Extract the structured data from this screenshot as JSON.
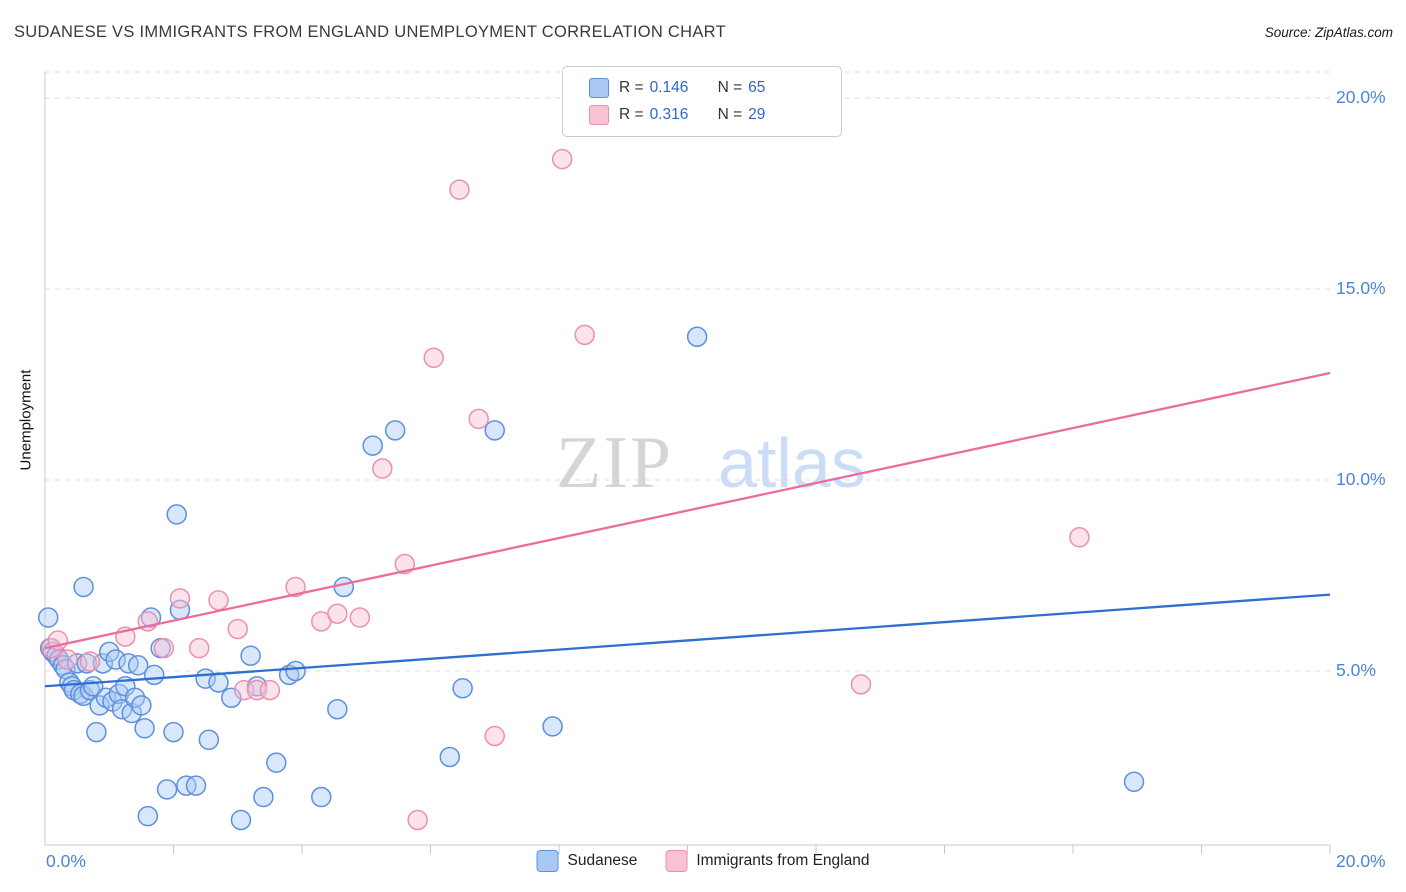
{
  "header": {
    "title": "SUDANESE VS IMMIGRANTS FROM ENGLAND UNEMPLOYMENT CORRELATION CHART",
    "source": "Source: ZipAtlas.com"
  },
  "watermark": {
    "part1": "ZIP",
    "part2": "atlas"
  },
  "legend_box": {
    "rows": [
      {
        "r_label": "R =",
        "r_value": "0.146",
        "n_label": "N =",
        "n_value": "65"
      },
      {
        "r_label": "R =",
        "r_value": "0.316",
        "n_label": "N =",
        "n_value": "29"
      }
    ]
  },
  "axis": {
    "y_ticks": [
      "5.0%",
      "10.0%",
      "15.0%",
      "20.0%"
    ],
    "x_min_label": "0.0%",
    "x_max_label": "20.0%"
  },
  "colors": {
    "axis_label_blue": "#4a86d8",
    "legend_value_blue": "#3066c8",
    "gridline": "#dcdcdc",
    "watermark_gray": "#d5d5d5",
    "watermark_blue": "#cadcf6"
  },
  "chart_data": {
    "type": "scatter",
    "title": "SUDANESE VS IMMIGRANTS FROM ENGLAND UNEMPLOYMENT CORRELATION CHART",
    "xlabel": "",
    "ylabel": "Unemployment",
    "xlim": [
      0,
      20
    ],
    "ylim": [
      0,
      20.7
    ],
    "x_unit": "%",
    "y_unit": "%",
    "grid": "horizontal-dashed",
    "y_gridlines": [
      5,
      10,
      15,
      20
    ],
    "x_ticks": [
      2,
      4,
      6,
      8,
      10,
      12,
      14,
      16,
      18,
      20
    ],
    "legend_position": "bottom-center",
    "series": [
      {
        "name": "Sudanese",
        "R": 0.146,
        "N": 65,
        "fill": "#a9c9f4",
        "edge": "#5e90dd",
        "line": "#2e6fd2",
        "trend": {
          "x": [
            0,
            20
          ],
          "y": [
            4.6,
            7.0
          ]
        },
        "points": [
          [
            0.05,
            6.4
          ],
          [
            0.08,
            5.6
          ],
          [
            0.12,
            5.5
          ],
          [
            0.18,
            5.4
          ],
          [
            0.22,
            5.3
          ],
          [
            0.28,
            5.15
          ],
          [
            0.32,
            5.05
          ],
          [
            0.38,
            4.7
          ],
          [
            0.42,
            4.6
          ],
          [
            0.45,
            4.5
          ],
          [
            0.5,
            5.2
          ],
          [
            0.55,
            4.4
          ],
          [
            0.6,
            7.2
          ],
          [
            0.6,
            4.35
          ],
          [
            0.65,
            5.2
          ],
          [
            0.7,
            4.5
          ],
          [
            0.75,
            4.6
          ],
          [
            0.8,
            3.4
          ],
          [
            0.85,
            4.1
          ],
          [
            0.9,
            5.2
          ],
          [
            0.95,
            4.3
          ],
          [
            1.0,
            5.5
          ],
          [
            1.05,
            4.2
          ],
          [
            1.1,
            5.3
          ],
          [
            1.15,
            4.4
          ],
          [
            1.2,
            4.0
          ],
          [
            1.25,
            4.6
          ],
          [
            1.3,
            5.2
          ],
          [
            1.35,
            3.9
          ],
          [
            1.4,
            4.3
          ],
          [
            1.45,
            5.15
          ],
          [
            1.5,
            4.1
          ],
          [
            1.55,
            3.5
          ],
          [
            1.6,
            1.2
          ],
          [
            1.65,
            6.4
          ],
          [
            1.7,
            4.9
          ],
          [
            1.8,
            5.6
          ],
          [
            1.9,
            1.9
          ],
          [
            2.0,
            3.4
          ],
          [
            2.05,
            9.1
          ],
          [
            2.1,
            6.6
          ],
          [
            2.2,
            2.0
          ],
          [
            2.35,
            2.0
          ],
          [
            2.5,
            4.8
          ],
          [
            2.55,
            3.2
          ],
          [
            2.7,
            4.7
          ],
          [
            2.9,
            4.3
          ],
          [
            3.05,
            1.1
          ],
          [
            3.2,
            5.4
          ],
          [
            3.3,
            4.6
          ],
          [
            3.4,
            1.7
          ],
          [
            3.6,
            2.6
          ],
          [
            3.8,
            4.9
          ],
          [
            3.9,
            5.0
          ],
          [
            4.3,
            1.7
          ],
          [
            4.55,
            4.0
          ],
          [
            4.65,
            7.2
          ],
          [
            5.1,
            10.9
          ],
          [
            5.45,
            11.3
          ],
          [
            6.3,
            2.75
          ],
          [
            6.5,
            4.55
          ],
          [
            7.0,
            11.3
          ],
          [
            7.9,
            3.55
          ],
          [
            10.15,
            13.75
          ],
          [
            16.95,
            2.1
          ]
        ]
      },
      {
        "name": "Immigrants from England",
        "R": 0.316,
        "N": 29,
        "fill": "#f9c2d3",
        "edge": "#ed8fb1",
        "line": "#ec6c9b",
        "trend": {
          "x": [
            0,
            20
          ],
          "y": [
            5.6,
            12.8
          ]
        },
        "points": [
          [
            0.1,
            5.6
          ],
          [
            0.2,
            5.8
          ],
          [
            0.35,
            5.3
          ],
          [
            0.7,
            5.25
          ],
          [
            1.25,
            5.9
          ],
          [
            1.6,
            6.3
          ],
          [
            1.85,
            5.6
          ],
          [
            2.1,
            6.9
          ],
          [
            2.4,
            5.6
          ],
          [
            2.7,
            6.85
          ],
          [
            3.0,
            6.1
          ],
          [
            3.1,
            4.5
          ],
          [
            3.3,
            4.5
          ],
          [
            3.5,
            4.5
          ],
          [
            3.9,
            7.2
          ],
          [
            4.3,
            6.3
          ],
          [
            4.55,
            6.5
          ],
          [
            4.9,
            6.4
          ],
          [
            5.25,
            10.3
          ],
          [
            5.6,
            7.8
          ],
          [
            5.8,
            1.1
          ],
          [
            6.05,
            13.2
          ],
          [
            6.45,
            17.6
          ],
          [
            6.75,
            11.6
          ],
          [
            7.0,
            3.3
          ],
          [
            8.05,
            18.4
          ],
          [
            8.4,
            13.8
          ],
          [
            12.7,
            4.65
          ],
          [
            16.1,
            8.5
          ]
        ]
      }
    ]
  }
}
